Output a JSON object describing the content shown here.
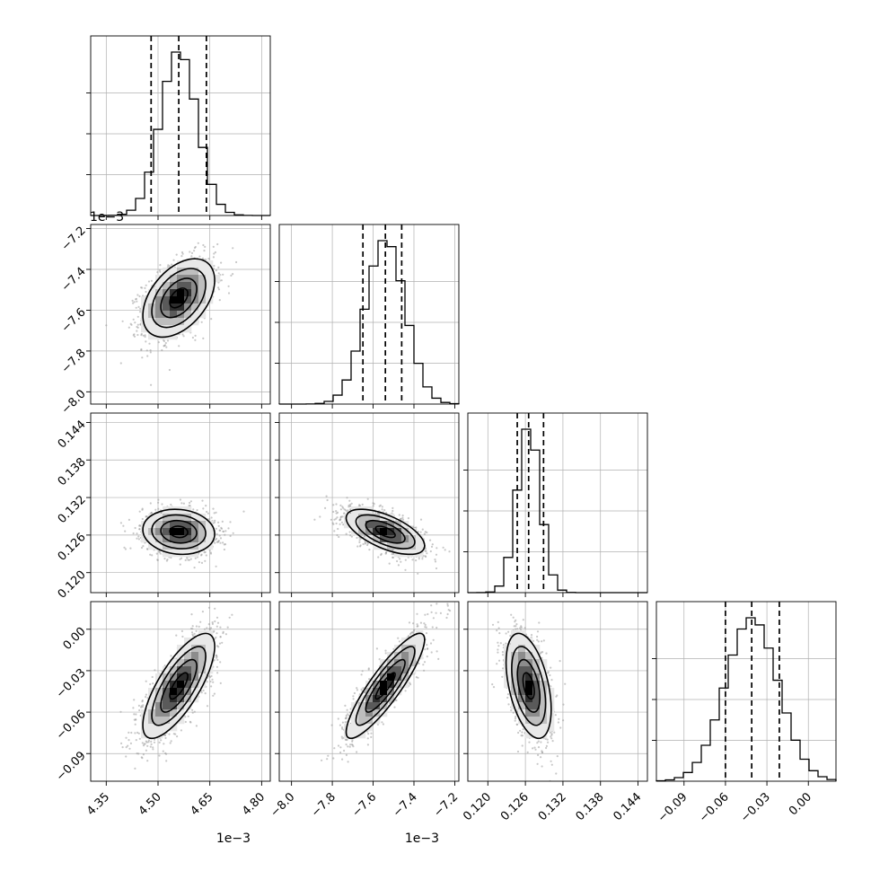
{
  "chart_data": {
    "type": "corner",
    "title": "",
    "grid": true,
    "parameters": [
      {
        "index": 0,
        "label": "",
        "mean": 0.00456,
        "sd": 5.2e-05,
        "range": [
          0.004305,
          0.004825
        ],
        "ticks": [
          0.00435,
          0.0045,
          0.00465,
          0.0048
        ],
        "tick_labels": [
          "4.35",
          "4.50",
          "4.65",
          "4.80"
        ],
        "offset_label": "1e−3",
        "quantiles": [
          0.00448,
          0.00456,
          0.00464
        ]
      },
      {
        "index": 1,
        "label": "",
        "mean": -0.00754,
        "sd": 9.6e-05,
        "range": [
          -0.00806,
          -0.00718
        ],
        "ticks": [
          -0.008,
          -0.0078,
          -0.0076,
          -0.0074,
          -0.0072
        ],
        "tick_labels": [
          "−8.0",
          "−7.8",
          "−7.6",
          "−7.4",
          "−7.2"
        ],
        "offset_label": "1e−3",
        "quantiles": [
          -0.00765,
          -0.00754,
          -0.00746
        ]
      },
      {
        "index": 2,
        "label": "",
        "mean": 0.12652,
        "sd": 0.0018,
        "range": [
          0.1168,
          0.1455
        ],
        "ticks": [
          0.12,
          0.126,
          0.132,
          0.138,
          0.144
        ],
        "tick_labels": [
          "0.120",
          "0.126",
          "0.132",
          "0.138",
          "0.144"
        ],
        "offset_label": "",
        "quantiles": [
          0.1247,
          0.12652,
          0.1289
        ]
      },
      {
        "index": 3,
        "label": "",
        "mean": -0.041,
        "sd": 0.019,
        "range": [
          -0.11,
          0.02
        ],
        "ticks": [
          -0.09,
          -0.06,
          -0.03,
          0.0
        ],
        "tick_labels": [
          "−0.09",
          "−0.06",
          "−0.03",
          "0.00"
        ],
        "offset_label": "",
        "quantiles": [
          -0.06,
          -0.041,
          -0.021
        ]
      }
    ],
    "correlations": [
      {
        "i": 0,
        "j": 1,
        "rho": 0.45
      },
      {
        "i": 0,
        "j": 2,
        "rho": -0.1
      },
      {
        "i": 1,
        "j": 2,
        "rho": -0.62
      },
      {
        "i": 0,
        "j": 3,
        "rho": 0.75
      },
      {
        "i": 1,
        "j": 3,
        "rho": 0.88
      },
      {
        "i": 2,
        "j": 3,
        "rho": -0.45
      }
    ],
    "contour_levels_sigma": [
      0.5,
      1.0,
      1.5,
      2.0
    ]
  }
}
